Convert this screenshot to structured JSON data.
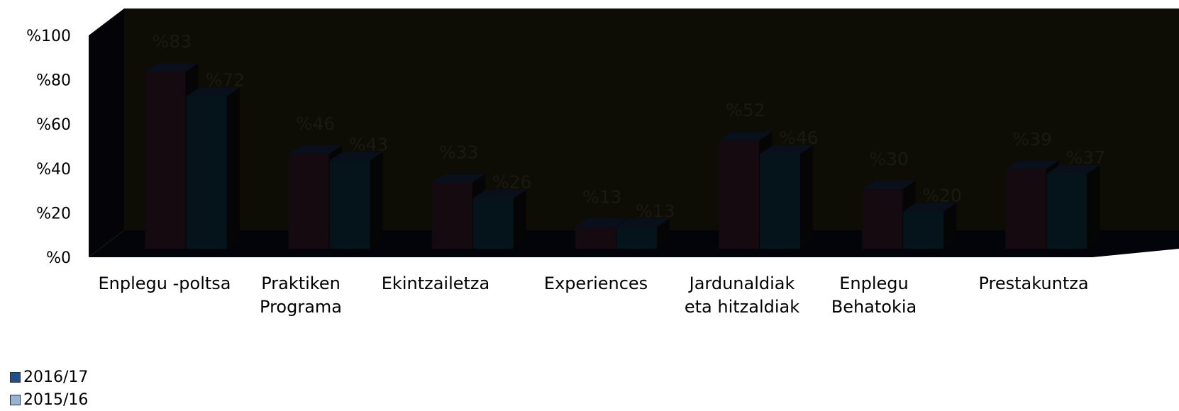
{
  "chart_data": {
    "type": "bar",
    "categories": [
      [
        "Enplegu -poltsa"
      ],
      [
        "Praktiken",
        "Programa"
      ],
      [
        "Ekintzailetza"
      ],
      [
        "Experiences"
      ],
      [
        "Jardunaldiak",
        "eta hitzaldiak"
      ],
      [
        "Enplegu",
        "Behatokia"
      ],
      [
        "Prestakuntza"
      ]
    ],
    "series": [
      {
        "name": "2016/17",
        "values": [
          83,
          46,
          33,
          13,
          52,
          30,
          39
        ],
        "labels": [
          "%83",
          "%46",
          "%33",
          "%13",
          "%52",
          "%30",
          "%39"
        ],
        "color": "#1f4e8c"
      },
      {
        "name": "2015/16",
        "values": [
          72,
          43,
          26,
          13,
          46,
          20,
          37
        ],
        "labels": [
          "%72",
          "%43",
          "%26",
          "%13",
          "%46",
          "%20",
          "%37"
        ],
        "color": "#95b3d7"
      }
    ],
    "y_ticks": [
      "%0",
      "%20",
      "%40",
      "%60",
      "%80",
      "%100"
    ],
    "y_tick_values": [
      0,
      20,
      40,
      60,
      80,
      100
    ],
    "ylim": [
      0,
      100
    ],
    "grid": false,
    "legend_position": "bottom-left",
    "background_color": "#0d0d05",
    "bar_fill_colors": [
      "#140a10",
      "#05141a"
    ],
    "data_label_color": "#1a1a14"
  },
  "legend": {
    "items": [
      {
        "label": "2016/17",
        "color": "#1f4e8c"
      },
      {
        "label": "2015/16",
        "color": "#95b3d7"
      }
    ]
  }
}
